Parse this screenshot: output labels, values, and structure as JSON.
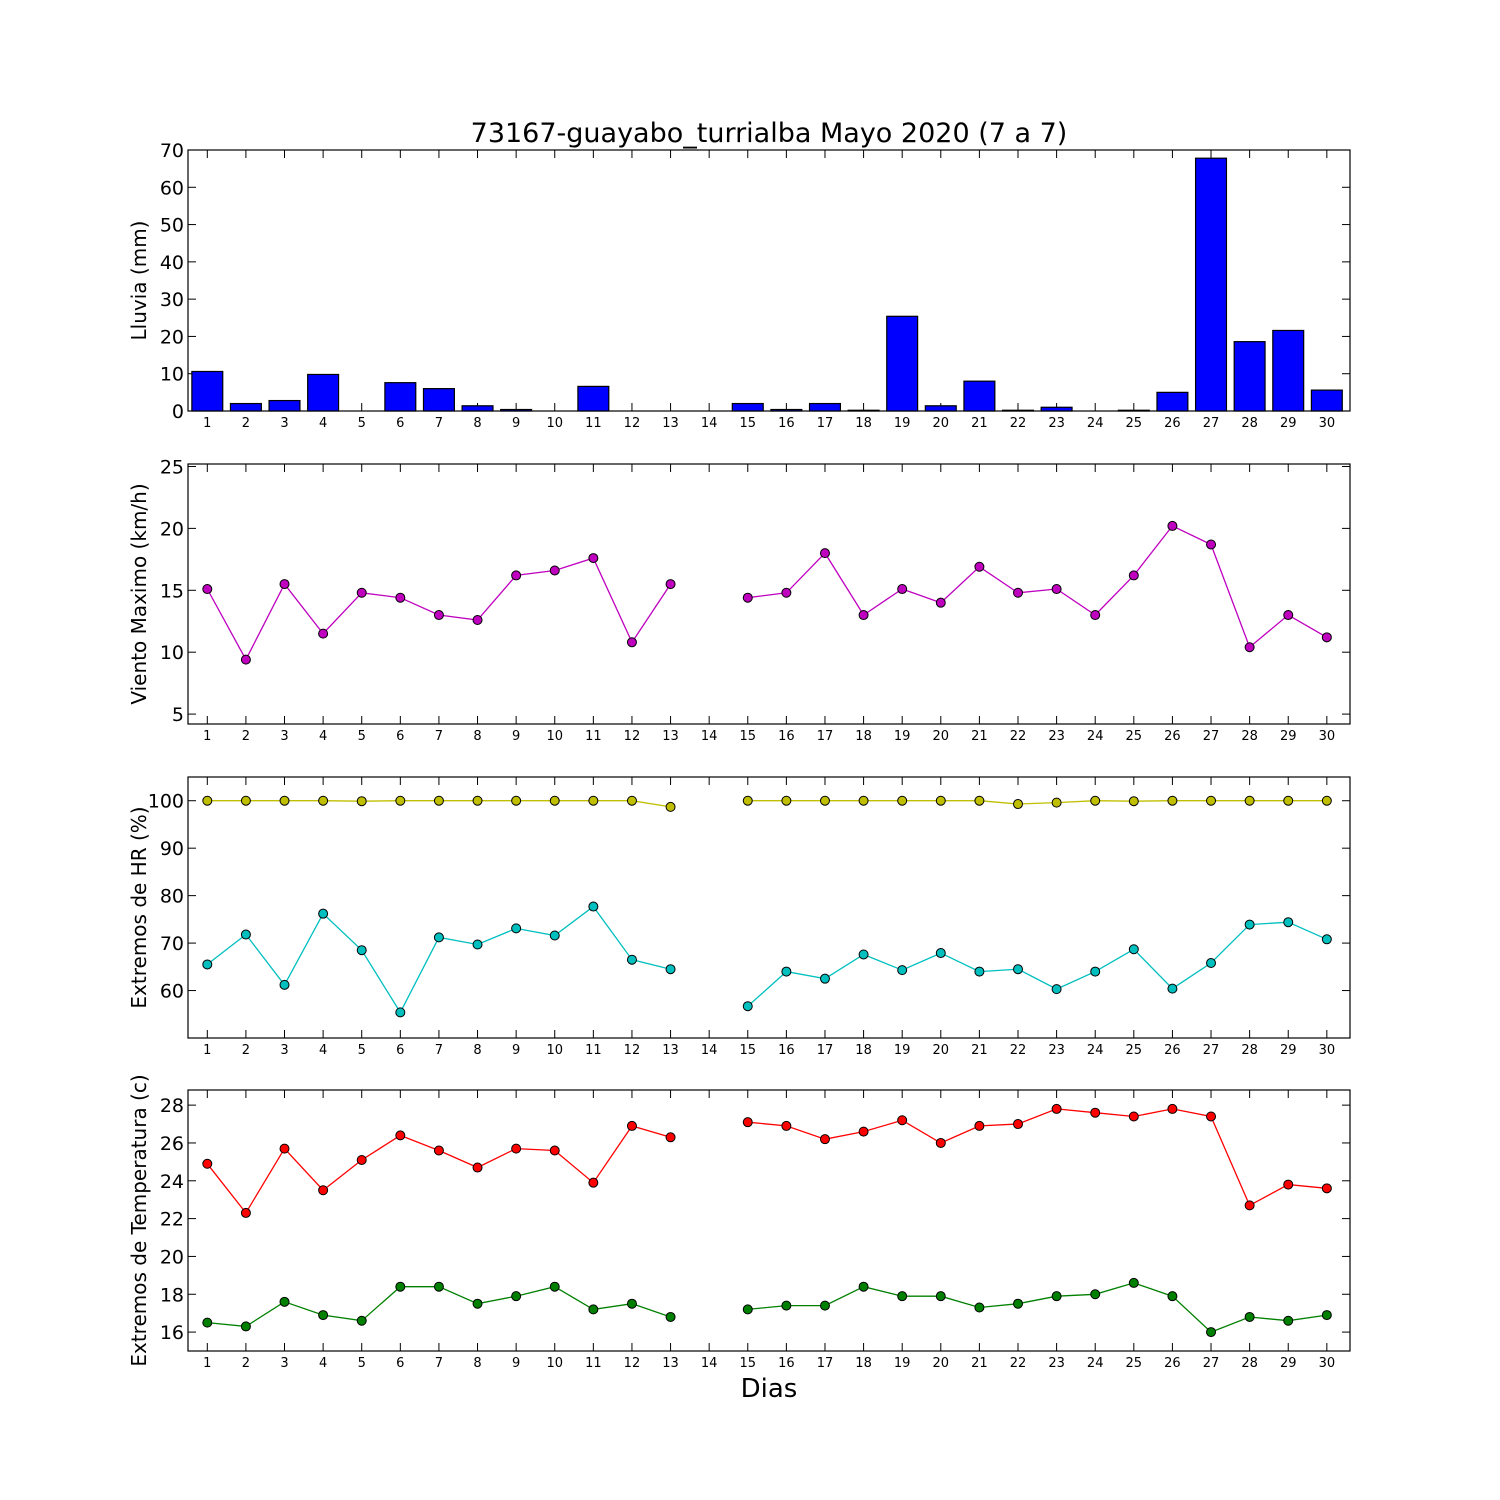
{
  "title": "73167-guayabo_turrialba Mayo 2020  (7 a 7)",
  "xlabel": "Dias",
  "days": [
    1,
    2,
    3,
    4,
    5,
    6,
    7,
    8,
    9,
    10,
    11,
    12,
    13,
    14,
    15,
    16,
    17,
    18,
    19,
    20,
    21,
    22,
    23,
    24,
    25,
    26,
    27,
    28,
    29,
    30
  ],
  "chart_data": [
    {
      "type": "bar",
      "ylabel": "Lluvia (mm)",
      "ylim": [
        0,
        70
      ],
      "yticks": [
        0,
        10,
        20,
        30,
        40,
        50,
        60,
        70
      ],
      "x": [
        1,
        2,
        3,
        4,
        5,
        6,
        7,
        8,
        9,
        10,
        11,
        12,
        13,
        14,
        15,
        16,
        17,
        18,
        19,
        20,
        21,
        22,
        23,
        24,
        25,
        26,
        27,
        28,
        29,
        30
      ],
      "series": [
        {
          "color": "#0000ff",
          "values": [
            10.6,
            2.0,
            2.8,
            9.8,
            0,
            7.6,
            6.0,
            1.4,
            0.4,
            0,
            6.6,
            0,
            0,
            0,
            2.0,
            0.4,
            2.0,
            0.2,
            25.4,
            1.4,
            8.0,
            0.2,
            1.0,
            0,
            0.2,
            5.0,
            67.8,
            18.6,
            21.6,
            5.6
          ]
        }
      ]
    },
    {
      "type": "line",
      "ylabel": "Viento Maximo (km/h)",
      "ylim": [
        4.2,
        25.2
      ],
      "yticks": [
        5,
        10,
        15,
        20,
        25
      ],
      "x": [
        1,
        2,
        3,
        4,
        5,
        6,
        7,
        8,
        9,
        10,
        11,
        12,
        13,
        14,
        15,
        16,
        17,
        18,
        19,
        20,
        21,
        22,
        23,
        24,
        25,
        26,
        27,
        28,
        29,
        30
      ],
      "series": [
        {
          "color": "#bf00bf",
          "values": [
            15.1,
            9.4,
            15.5,
            11.5,
            14.8,
            14.4,
            13.0,
            12.6,
            16.2,
            16.6,
            17.6,
            10.8,
            15.5,
            null,
            14.4,
            14.8,
            18.0,
            13.0,
            15.1,
            14.0,
            16.9,
            14.8,
            15.1,
            13.0,
            16.2,
            20.2,
            18.7,
            10.4,
            13.0,
            11.2
          ]
        }
      ]
    },
    {
      "type": "line",
      "ylabel": "Extremos de HR (%)",
      "ylim": [
        50,
        105
      ],
      "yticks": [
        60,
        70,
        80,
        90,
        100
      ],
      "x": [
        1,
        2,
        3,
        4,
        5,
        6,
        7,
        8,
        9,
        10,
        11,
        12,
        13,
        14,
        15,
        16,
        17,
        18,
        19,
        20,
        21,
        22,
        23,
        24,
        25,
        26,
        27,
        28,
        29,
        30
      ],
      "series": [
        {
          "color": "#bfbf00",
          "values": [
            100,
            100,
            100,
            100,
            99.9,
            100,
            100,
            100,
            100,
            100,
            100,
            100,
            98.7,
            null,
            100,
            100,
            100,
            100,
            100,
            100,
            100,
            99.3,
            99.6,
            100,
            99.9,
            100,
            100,
            100,
            100,
            100
          ]
        },
        {
          "color": "#00bfbf",
          "values": [
            65.5,
            71.8,
            61.2,
            76.2,
            68.5,
            55.4,
            71.2,
            69.7,
            73.1,
            71.6,
            77.7,
            66.5,
            64.5,
            null,
            56.7,
            64.0,
            62.5,
            67.6,
            64.3,
            67.9,
            64.0,
            64.5,
            60.3,
            64.0,
            68.7,
            60.4,
            65.8,
            73.9,
            74.4,
            70.8
          ]
        }
      ]
    },
    {
      "type": "line",
      "ylabel": "Extremos de Temperatura (c)",
      "ylim": [
        15,
        28.8
      ],
      "yticks": [
        16,
        18,
        20,
        22,
        24,
        26,
        28
      ],
      "x": [
        1,
        2,
        3,
        4,
        5,
        6,
        7,
        8,
        9,
        10,
        11,
        12,
        13,
        14,
        15,
        16,
        17,
        18,
        19,
        20,
        21,
        22,
        23,
        24,
        25,
        26,
        27,
        28,
        29,
        30
      ],
      "series": [
        {
          "color": "#ff0000",
          "values": [
            24.9,
            22.3,
            25.7,
            23.5,
            25.1,
            26.4,
            25.6,
            24.7,
            25.7,
            25.6,
            23.9,
            26.9,
            26.3,
            null,
            27.1,
            26.9,
            26.2,
            26.6,
            27.2,
            26.0,
            26.9,
            27.0,
            27.8,
            27.6,
            27.4,
            27.8,
            27.4,
            22.7,
            23.8,
            23.6
          ]
        },
        {
          "color": "#008000",
          "values": [
            16.5,
            16.3,
            17.6,
            16.9,
            16.6,
            18.4,
            18.4,
            17.5,
            17.9,
            18.4,
            17.2,
            17.5,
            16.8,
            null,
            17.2,
            17.4,
            17.4,
            18.4,
            17.9,
            17.9,
            17.3,
            17.5,
            17.9,
            18.0,
            18.6,
            17.9,
            16.0,
            16.8,
            16.6,
            16.9
          ]
        }
      ]
    }
  ]
}
